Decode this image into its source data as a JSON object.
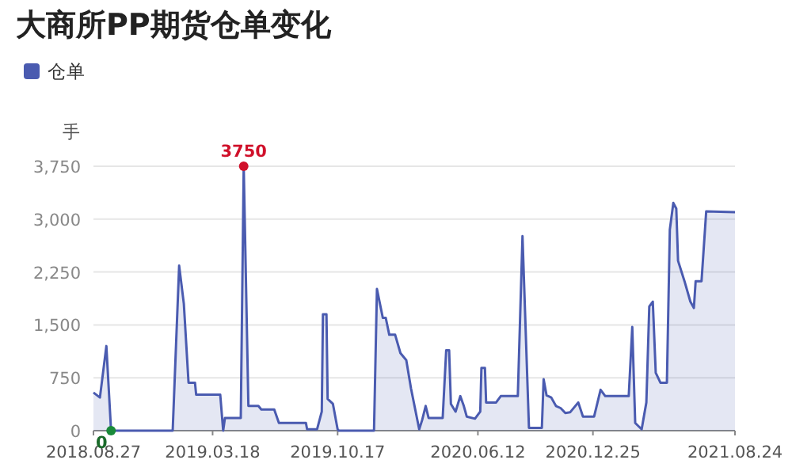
{
  "chart_data": {
    "type": "area",
    "title": "大商所PP期货仓单变化",
    "ylabel": "手",
    "legend": "top left",
    "grid": "y",
    "xlim": [
      "2018-08-27",
      "2021-08-24"
    ],
    "xticks": [
      {
        "value": "2018-08-27",
        "label": "2018.08.27"
      },
      {
        "value": "2019-03-18",
        "label": "2019.03.18"
      },
      {
        "value": "2019-10-17",
        "label": "2019.10.17"
      },
      {
        "value": "2020-06-12",
        "label": "2020.06.12"
      },
      {
        "value": "2020-12-25",
        "label": "2020.12.25"
      },
      {
        "value": "2021-08-24",
        "label": "2021.08.24"
      }
    ],
    "ylim": [
      0,
      3750
    ],
    "yticks": [
      0,
      750,
      {
        "value": 1500,
        "label": "1,500"
      },
      {
        "value": 2250,
        "label": "2,250"
      },
      {
        "value": 3000,
        "label": "3,000"
      },
      {
        "value": 3750,
        "label": "3,750"
      }
    ],
    "annotations": [
      {
        "text": "3750",
        "x": "2019-05-10",
        "y": 3750
      },
      {
        "text": "0",
        "x": "2018-09-26",
        "y": 0
      }
    ],
    "series": [
      {
        "name": "仓单",
        "color": "#4a5bb0",
        "x": [
          "2018-08-27",
          "2018-09-07",
          "2018-09-18",
          "2018-09-26",
          "2019-01-09",
          "2019-01-20",
          "2019-01-28",
          "2019-02-05",
          "2019-02-16",
          "2019-02-18",
          "2019-03-31",
          "2019-04-05",
          "2019-04-08",
          "2019-05-05",
          "2019-05-10",
          "2019-05-18",
          "2019-06-04",
          "2019-06-09",
          "2019-07-01",
          "2019-07-09",
          "2019-08-24",
          "2019-08-26",
          "2019-09-12",
          "2019-09-20",
          "2019-09-22",
          "2019-09-28",
          "2019-09-30",
          "2019-10-09",
          "2019-10-17",
          "2019-10-19",
          "2019-12-18",
          "2019-12-23",
          "2020-01-02",
          "2020-01-07",
          "2020-01-13",
          "2020-01-23",
          "2020-02-01",
          "2020-02-11",
          "2020-02-19",
          "2020-03-04",
          "2020-03-09",
          "2020-03-15",
          "2020-03-20",
          "2020-04-13",
          "2020-04-19",
          "2020-04-24",
          "2020-04-27",
          "2020-05-05",
          "2020-05-13",
          "2020-05-19",
          "2020-05-24",
          "2020-06-07",
          "2020-06-16",
          "2020-06-18",
          "2020-06-24",
          "2020-06-26",
          "2020-07-13",
          "2020-07-21",
          "2020-08-19",
          "2020-08-27",
          "2020-09-07",
          "2020-09-29",
          "2020-10-02",
          "2020-10-07",
          "2020-10-15",
          "2020-10-23",
          "2020-10-31",
          "2020-11-08",
          "2020-11-16",
          "2020-11-30",
          "2020-12-08",
          "2020-12-27",
          "2021-01-07",
          "2021-01-15",
          "2021-02-24",
          "2021-03-02",
          "2021-03-07",
          "2021-03-18",
          "2021-03-26",
          "2021-03-31",
          "2021-04-06",
          "2021-04-11",
          "2021-04-19",
          "2021-04-30",
          "2021-05-05",
          "2021-05-11",
          "2021-05-16",
          "2021-05-19",
          "2021-05-30",
          "2021-06-09",
          "2021-06-15",
          "2021-06-18",
          "2021-06-28",
          "2021-07-06",
          "2021-08-24"
        ],
        "values": [
          540,
          470,
          1200,
          0,
          0,
          2340,
          1800,
          680,
          680,
          510,
          510,
          0,
          180,
          180,
          3750,
          350,
          350,
          300,
          300,
          110,
          110,
          20,
          20,
          270,
          1650,
          1650,
          450,
          380,
          20,
          0,
          0,
          2010,
          1600,
          1600,
          1360,
          1360,
          1100,
          1000,
          600,
          20,
          150,
          350,
          180,
          180,
          1140,
          1140,
          380,
          270,
          490,
          350,
          200,
          170,
          270,
          890,
          890,
          400,
          400,
          490,
          490,
          2760,
          40,
          40,
          730,
          500,
          470,
          350,
          320,
          250,
          260,
          400,
          200,
          200,
          580,
          490,
          490,
          1470,
          110,
          20,
          400,
          1760,
          1830,
          820,
          680,
          680,
          2850,
          3230,
          3150,
          2410,
          2120,
          1830,
          1740,
          2120,
          2120,
          3110,
          3100
        ]
      }
    ]
  }
}
